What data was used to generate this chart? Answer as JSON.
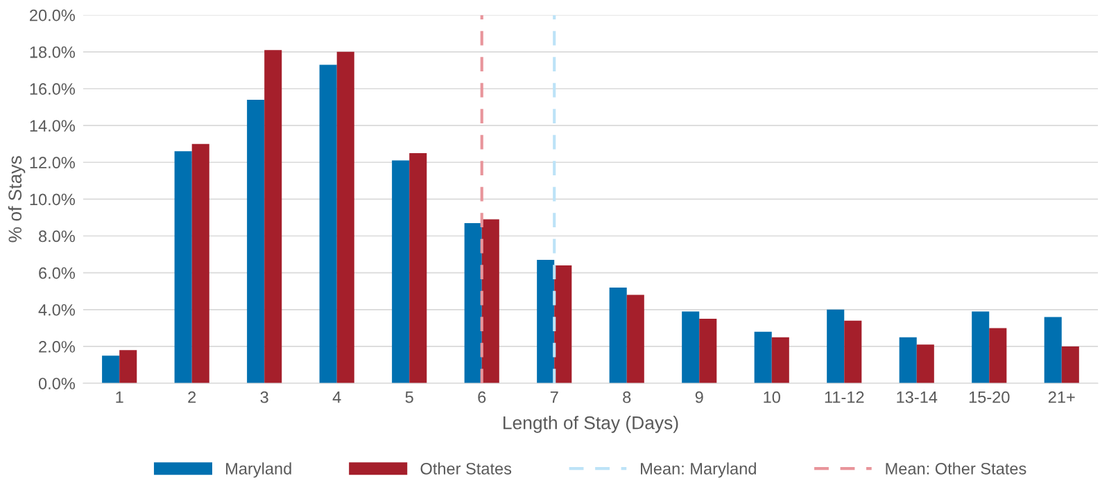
{
  "chart_data": {
    "type": "bar",
    "xlabel": "Length of Stay (Days)",
    "ylabel": "% of Stays",
    "categories": [
      "1",
      "2",
      "3",
      "4",
      "5",
      "6",
      "7",
      "8",
      "9",
      "10",
      "11-12",
      "13-14",
      "15-20",
      "21+"
    ],
    "series": [
      {
        "name": "Maryland",
        "color": "#0070b0",
        "values": [
          1.5,
          12.6,
          15.4,
          17.3,
          12.1,
          8.7,
          6.7,
          5.2,
          3.9,
          2.8,
          4.0,
          2.5,
          3.9,
          3.6
        ]
      },
      {
        "name": "Other States",
        "color": "#a51f2b",
        "values": [
          1.8,
          13.0,
          18.1,
          18.0,
          12.5,
          8.9,
          6.4,
          4.8,
          3.5,
          2.5,
          3.4,
          2.1,
          3.0,
          2.0
        ]
      }
    ],
    "ref_lines": [
      {
        "axis": "x",
        "value": "7",
        "label": "Mean: Maryland",
        "color": "#bde3f7",
        "line_style": "dashed"
      },
      {
        "axis": "x",
        "value": "6",
        "label": "Mean: Other States",
        "color": "#e8959b",
        "line_style": "dashed"
      }
    ],
    "ylim": [
      0,
      20
    ],
    "yticks": [
      {
        "value": 0,
        "label": "0.0%"
      },
      {
        "value": 2,
        "label": "2.0%"
      },
      {
        "value": 4,
        "label": "4.0%"
      },
      {
        "value": 6,
        "label": "6.0%"
      },
      {
        "value": 8,
        "label": "8.0%"
      },
      {
        "value": 10,
        "label": "10.0%"
      },
      {
        "value": 12,
        "label": "12.0%"
      },
      {
        "value": 14,
        "label": "14.0%"
      },
      {
        "value": 16,
        "label": "16.0%"
      },
      {
        "value": 18,
        "label": "18.0%"
      },
      {
        "value": 20,
        "label": "20.0%"
      }
    ],
    "grid": "y",
    "legend": "bottom"
  }
}
